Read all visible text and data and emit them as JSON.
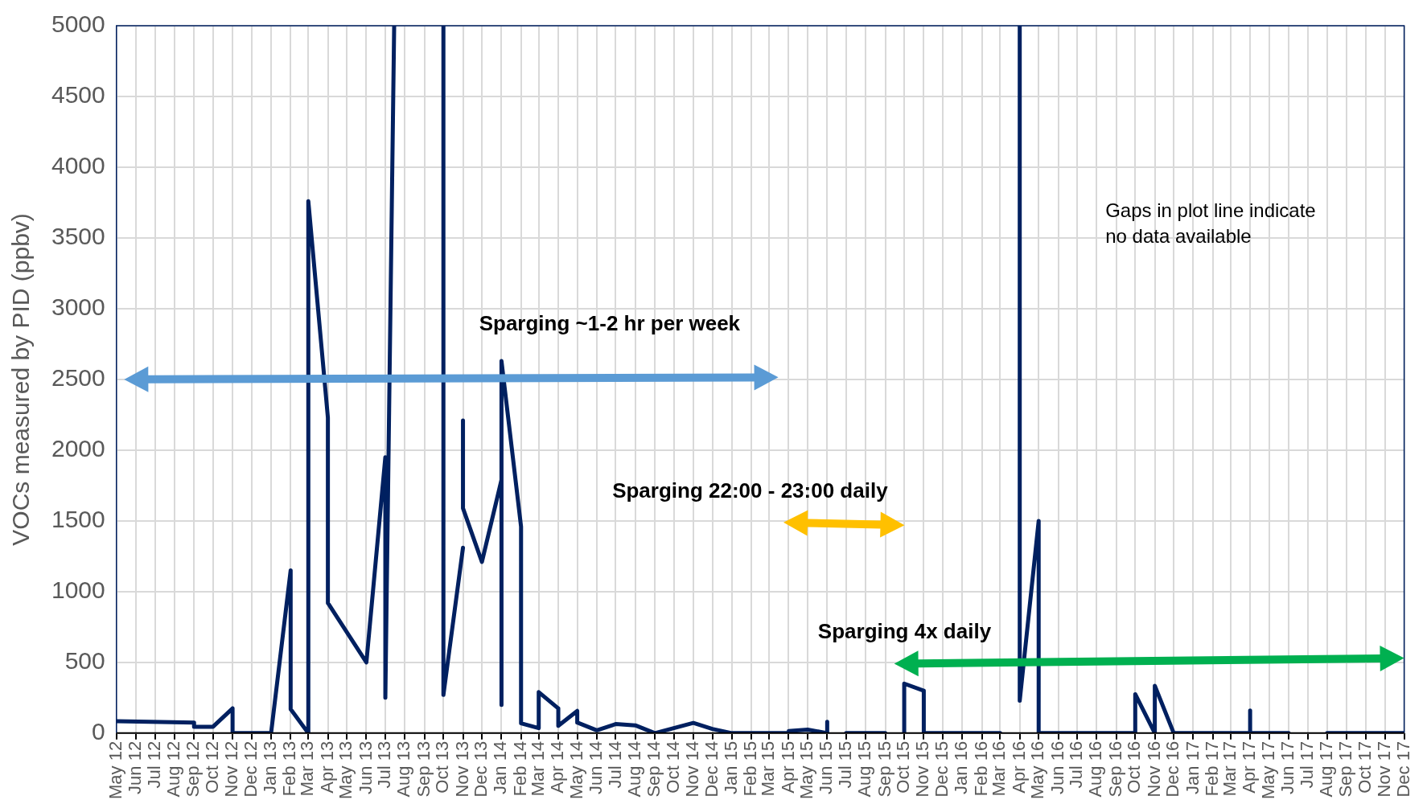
{
  "chart_data": {
    "type": "line",
    "ylabel": "VOCs measured by PID (ppbv)",
    "xlim": [
      "2012-05-01",
      "2017-12-01"
    ],
    "xticks": [
      {
        "value": "2012-05",
        "label": "May 12"
      },
      {
        "value": "2012-06",
        "label": "Jun 12"
      },
      {
        "value": "2012-07",
        "label": "Jul 12"
      },
      {
        "value": "2012-08",
        "label": "Aug 12"
      },
      {
        "value": "2012-09",
        "label": "Sep 12"
      },
      {
        "value": "2012-10",
        "label": "Oct 12"
      },
      {
        "value": "2012-11",
        "label": "Nov 12"
      },
      {
        "value": "2012-12",
        "label": "Dec 12"
      },
      {
        "value": "2013-01",
        "label": "Jan 13"
      },
      {
        "value": "2013-02",
        "label": "Feb 13"
      },
      {
        "value": "2013-03",
        "label": "Mar 13"
      },
      {
        "value": "2013-04",
        "label": "Apr 13"
      },
      {
        "value": "2013-05",
        "label": "May 13"
      },
      {
        "value": "2013-06",
        "label": "Jun 13"
      },
      {
        "value": "2013-07",
        "label": "Jul 13"
      },
      {
        "value": "2013-08",
        "label": "Aug 13"
      },
      {
        "value": "2013-09",
        "label": "Sep 13"
      },
      {
        "value": "2013-10",
        "label": "Oct 13"
      },
      {
        "value": "2013-11",
        "label": "Nov 13"
      },
      {
        "value": "2013-12",
        "label": "Dec 13"
      },
      {
        "value": "2014-01",
        "label": "Jan 14"
      },
      {
        "value": "2014-02",
        "label": "Feb 14"
      },
      {
        "value": "2014-03",
        "label": "Mar 14"
      },
      {
        "value": "2014-04",
        "label": "Apr 14"
      },
      {
        "value": "2014-05",
        "label": "May 14"
      },
      {
        "value": "2014-06",
        "label": "Jun 14"
      },
      {
        "value": "2014-07",
        "label": "Jul 14"
      },
      {
        "value": "2014-08",
        "label": "Aug 14"
      },
      {
        "value": "2014-09",
        "label": "Sep 14"
      },
      {
        "value": "2014-10",
        "label": "Oct 14"
      },
      {
        "value": "2014-11",
        "label": "Nov 14"
      },
      {
        "value": "2014-12",
        "label": "Dec 14"
      },
      {
        "value": "2015-01",
        "label": "Jan 15"
      },
      {
        "value": "2015-02",
        "label": "Feb 15"
      },
      {
        "value": "2015-03",
        "label": "Mar 15"
      },
      {
        "value": "2015-04",
        "label": "Apr 15"
      },
      {
        "value": "2015-05",
        "label": "May 15"
      },
      {
        "value": "2015-06",
        "label": "Jun 15"
      },
      {
        "value": "2015-07",
        "label": "Jul 15"
      },
      {
        "value": "2015-08",
        "label": "Aug 15"
      },
      {
        "value": "2015-09",
        "label": "Sep 15"
      },
      {
        "value": "2015-10",
        "label": "Oct 15"
      },
      {
        "value": "2015-11",
        "label": "Nov 15"
      },
      {
        "value": "2015-12",
        "label": "Dec 15"
      },
      {
        "value": "2016-01",
        "label": "Jan 16"
      },
      {
        "value": "2016-02",
        "label": "Feb 16"
      },
      {
        "value": "2016-03",
        "label": "Mar 16"
      },
      {
        "value": "2016-04",
        "label": "Apr 16"
      },
      {
        "value": "2016-05",
        "label": "May 16"
      },
      {
        "value": "2016-06",
        "label": "Jun 16"
      },
      {
        "value": "2016-07",
        "label": "Jul 16"
      },
      {
        "value": "2016-08",
        "label": "Aug 16"
      },
      {
        "value": "2016-09",
        "label": "Sep 16"
      },
      {
        "value": "2016-10",
        "label": "Oct 16"
      },
      {
        "value": "2016-11",
        "label": "Nov 16"
      },
      {
        "value": "2016-12",
        "label": "Dec 16"
      },
      {
        "value": "2017-01",
        "label": "Jan 17"
      },
      {
        "value": "2017-02",
        "label": "Feb 17"
      },
      {
        "value": "2017-03",
        "label": "Mar 17"
      },
      {
        "value": "2017-04",
        "label": "Apr 17"
      },
      {
        "value": "2017-05",
        "label": "May 17"
      },
      {
        "value": "2017-06",
        "label": "Jun 17"
      },
      {
        "value": "2017-07",
        "label": "Jul 17"
      },
      {
        "value": "2017-08",
        "label": "Aug 17"
      },
      {
        "value": "2017-09",
        "label": "Sep 17"
      },
      {
        "value": "2017-10",
        "label": "Oct 17"
      },
      {
        "value": "2017-11",
        "label": "Nov 17"
      },
      {
        "value": "2017-12",
        "label": "Dec 17"
      }
    ],
    "ylim": [
      0,
      5000
    ],
    "yticks": [
      0,
      500,
      1000,
      1500,
      2000,
      2500,
      3000,
      3500,
      4000,
      4500,
      5000
    ],
    "grid": true,
    "legend": false,
    "marker": "none",
    "line_style": "solid",
    "series": [
      {
        "color": "#002060",
        "x": [
          "2012-05-01",
          "2012-09-01",
          "2012-09-01",
          "2012-10-01",
          "2012-11-01",
          "2012-11-01",
          "2013-01-01",
          "2013-02-01",
          "2013-02-01",
          "2013-03-01",
          "2013-03-01",
          "2013-04-01",
          "2013-04-01",
          "2013-06-01",
          "2013-07-01",
          "2013-07-01",
          "2013-07-15",
          null,
          "2013-10-01",
          "2013-10-01",
          "2013-11-01",
          null,
          "2013-11-01",
          "2013-11-01",
          "2013-12-01",
          "2014-01-01",
          "2014-01-01",
          "2014-01-01",
          "2014-02-01",
          "2014-02-01",
          "2014-03-01",
          "2014-03-01",
          "2014-04-01",
          "2014-04-01",
          "2014-05-01",
          "2014-05-01",
          "2014-06-01",
          "2014-07-01",
          "2014-08-01",
          "2014-09-01",
          "2014-11-01",
          "2014-12-01",
          "2015-01-01",
          "2015-04-01",
          "2015-04-01",
          "2015-05-01",
          "2015-06-01",
          "2015-06-01",
          null,
          "2015-07-01",
          "2015-09-01",
          null,
          "2015-10-01",
          "2015-10-01",
          "2015-11-01",
          "2015-11-01",
          "2016-03-01",
          null,
          "2016-04-01",
          "2016-04-01",
          "2016-05-01",
          "2016-05-01",
          "2016-10-01",
          "2016-10-01",
          "2016-11-01",
          "2016-11-01",
          "2016-12-01",
          "2017-04-01",
          "2017-04-01",
          "2017-04-01",
          "2017-06-01",
          null,
          "2017-08-01",
          "2017-12-01"
        ],
        "values": [
          85,
          75,
          45,
          45,
          175,
          0,
          0,
          1150,
          170,
          0,
          3760,
          2230,
          920,
          500,
          1950,
          250,
          5000,
          null,
          5000,
          270,
          1310,
          null,
          2210,
          1590,
          1210,
          1790,
          200,
          2630,
          1460,
          70,
          35,
          290,
          175,
          52,
          157,
          75,
          20,
          64,
          55,
          0,
          72,
          30,
          0,
          0,
          15,
          25,
          0,
          80,
          null,
          0,
          0,
          null,
          0,
          350,
          300,
          0,
          0,
          null,
          5000,
          230,
          1500,
          0,
          0,
          275,
          0,
          335,
          0,
          0,
          160,
          0,
          0,
          null,
          0,
          0
        ]
      }
    ],
    "annotations": [
      "Sparging ~1-2 hr per week",
      "Sparging 22:00 - 23:00 daily",
      "Sparging 4x daily",
      "Gaps in plot line indicate no data available"
    ]
  }
}
